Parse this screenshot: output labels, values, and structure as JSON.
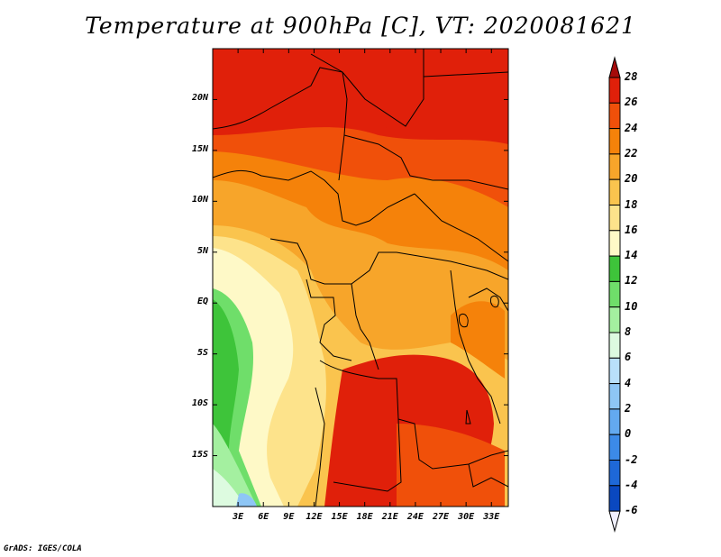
{
  "title": "Temperature at 900hPa [C], VT: 2020081621",
  "credit": "GrADS: IGES/COLA",
  "map": {
    "lat_labels": [
      {
        "label": "20N",
        "value": 20
      },
      {
        "label": "15N",
        "value": 15
      },
      {
        "label": "10N",
        "value": 10
      },
      {
        "label": "5N",
        "value": 5
      },
      {
        "label": "EQ",
        "value": 0
      },
      {
        "label": "5S",
        "value": -5
      },
      {
        "label": "10S",
        "value": -10
      },
      {
        "label": "15S",
        "value": -15
      }
    ],
    "lon_labels": [
      {
        "label": "3E",
        "value": 3
      },
      {
        "label": "6E",
        "value": 6
      },
      {
        "label": "9E",
        "value": 9
      },
      {
        "label": "12E",
        "value": 12
      },
      {
        "label": "15E",
        "value": 15
      },
      {
        "label": "18E",
        "value": 18
      },
      {
        "label": "21E",
        "value": 21
      },
      {
        "label": "24E",
        "value": 24
      },
      {
        "label": "27E",
        "value": 27
      },
      {
        "label": "30E",
        "value": 30
      },
      {
        "label": "33E",
        "value": 33
      }
    ],
    "lon_range": [
      0,
      35
    ],
    "lat_range": [
      -20,
      25
    ]
  },
  "colorbar": {
    "labels": [
      "28",
      "26",
      "24",
      "22",
      "20",
      "18",
      "16",
      "14",
      "12",
      "10",
      "8",
      "6",
      "4",
      "2",
      "0",
      "-2",
      "-4",
      "-6"
    ],
    "colors": [
      "#a50a0a",
      "#e0200a",
      "#f0500a",
      "#f5820a",
      "#f7a52a",
      "#fac44e",
      "#fde38b",
      "#fef9c7",
      "#3ec43a",
      "#6fde6a",
      "#a4f0a0",
      "#ddfbe0",
      "#b9e0fb",
      "#8ec6f5",
      "#63a9f0",
      "#3c8ae8",
      "#1e68d8",
      "#0a48c0",
      "#0a2890",
      "#f0f0ff"
    ]
  },
  "chart_data": {
    "type": "heatmap",
    "title": "Temperature at 900hPa [C], VT: 2020081621",
    "variable": "Temperature at 900hPa",
    "units": "C",
    "valid_time": "2020081621",
    "lon_range": [
      0,
      35
    ],
    "lat_range": [
      -20,
      25
    ],
    "levels": [
      -6,
      -4,
      -2,
      0,
      2,
      4,
      6,
      8,
      10,
      12,
      14,
      16,
      18,
      20,
      22,
      24,
      26,
      28
    ]
  }
}
